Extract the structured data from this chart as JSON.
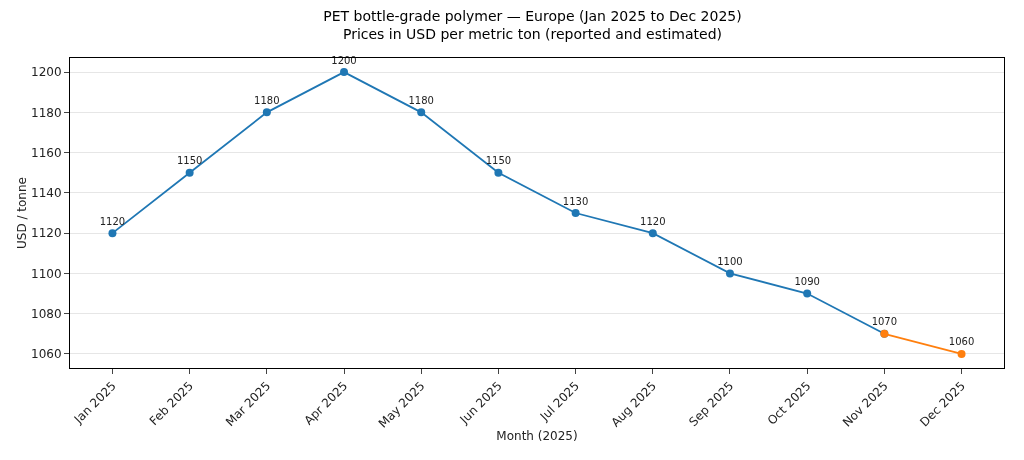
{
  "chart_data": {
    "type": "line",
    "title": "PET bottle-grade polymer — Europe (Jan 2025 to Dec 2025)",
    "subtitle": "Prices in USD per metric ton (reported and estimated)",
    "xlabel": "Month (2025)",
    "ylabel": "USD / tonne",
    "categories": [
      "Jan 2025",
      "Feb 2025",
      "Mar 2025",
      "Apr 2025",
      "May 2025",
      "Jun 2025",
      "Jul 2025",
      "Aug 2025",
      "Sep 2025",
      "Oct 2025",
      "Nov 2025",
      "Dec 2025"
    ],
    "series": [
      {
        "color": "#1f77b4",
        "values": [
          1120,
          1150,
          1180,
          1200,
          1180,
          1150,
          1130,
          1120,
          1100,
          1090,
          1070,
          null
        ],
        "value_labels": [
          "1120",
          "1150",
          "1180",
          "1200",
          "1180",
          "1150",
          "1130",
          "1120",
          "1100",
          "1090",
          null,
          null
        ]
      },
      {
        "color": "#ff7f0e",
        "values": [
          null,
          null,
          null,
          null,
          null,
          null,
          null,
          null,
          null,
          null,
          1070,
          1060
        ],
        "value_labels": [
          null,
          null,
          null,
          null,
          null,
          null,
          null,
          null,
          null,
          null,
          "1070",
          "1060"
        ]
      }
    ],
    "ylim": [
      1053,
      1207
    ],
    "yticks": [
      1060,
      1080,
      1100,
      1120,
      1140,
      1160,
      1180,
      1200
    ],
    "grid": "y",
    "marker": "circle",
    "line_style": "solid"
  }
}
